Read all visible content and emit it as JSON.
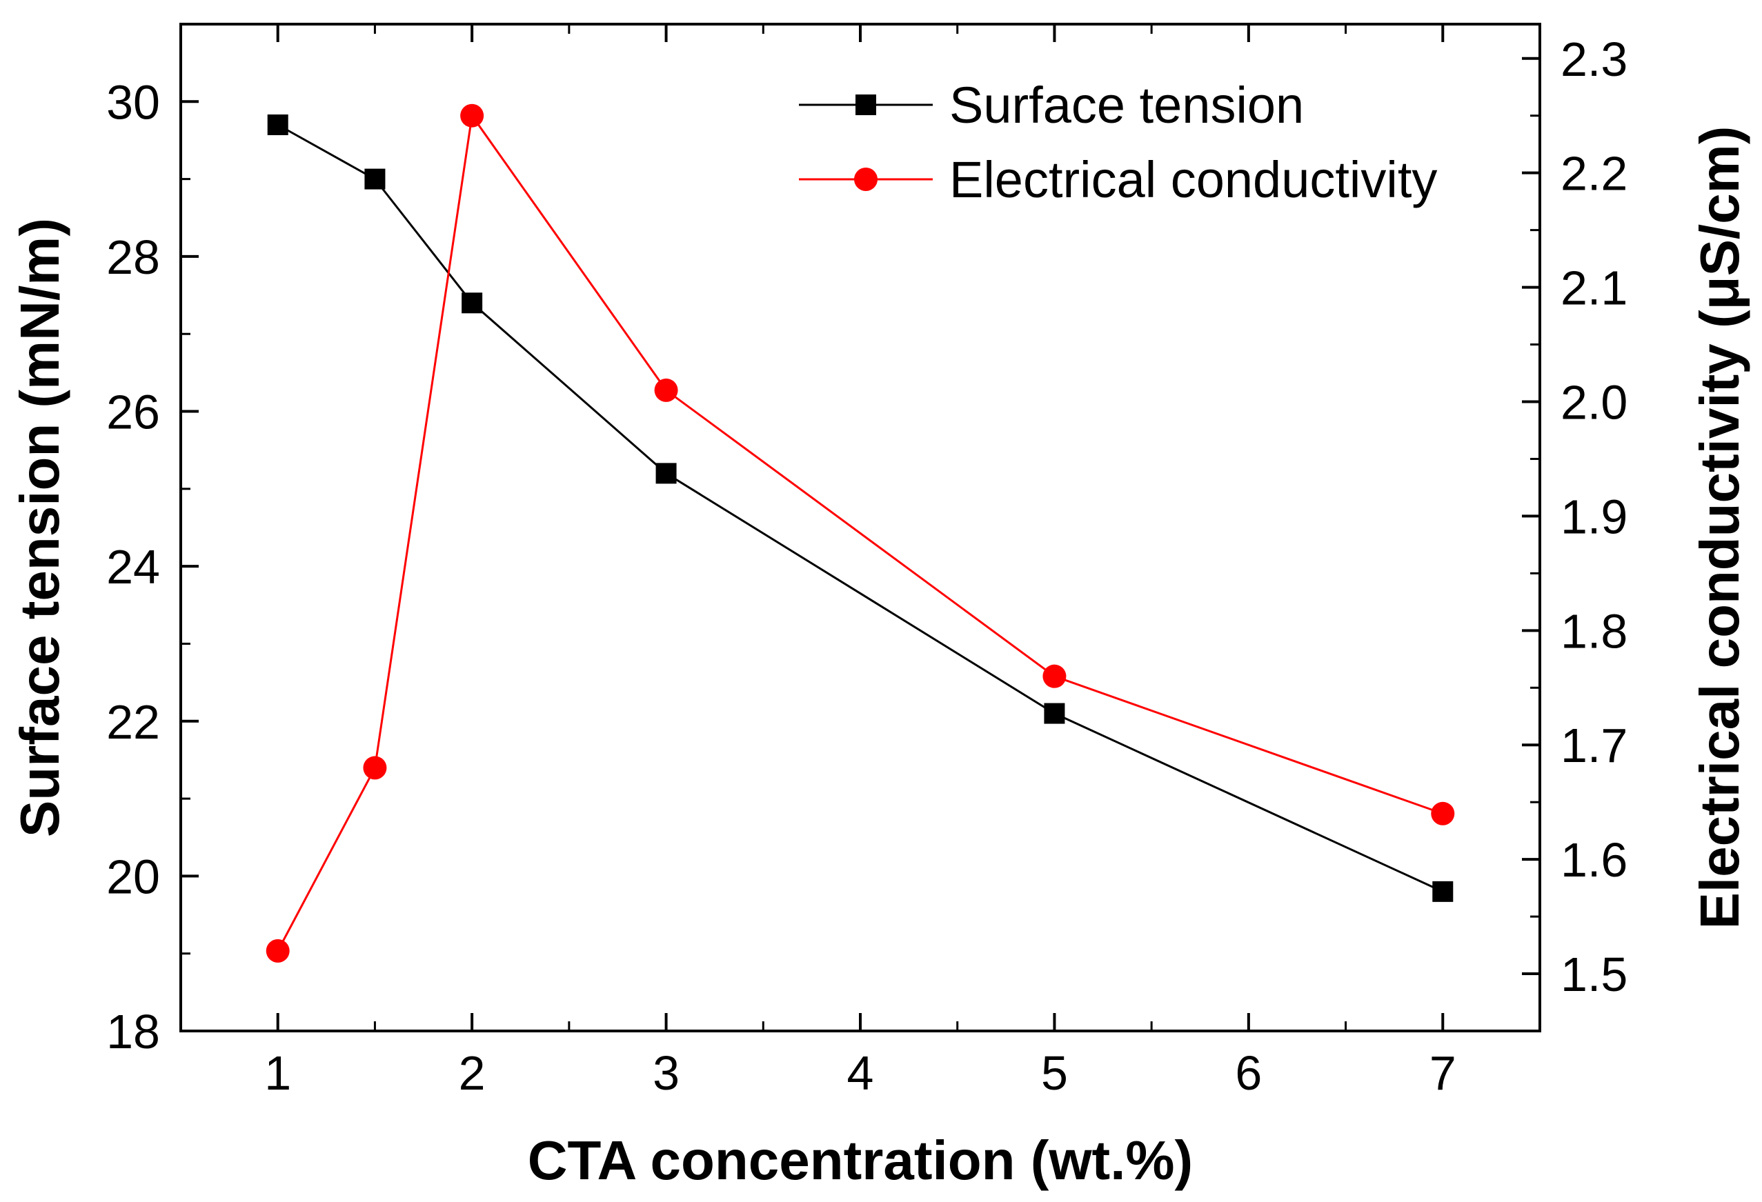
{
  "chart_data": {
    "type": "line",
    "xlabel": "CTA concentration (wt.%)",
    "ylabel_left": "Surface tension (mN/m)",
    "ylabel_right": "Electrical conductivity (μS/cm)",
    "xlim": [
      0.5,
      7.5
    ],
    "ylim_left": [
      18,
      31
    ],
    "ylim_right": [
      1.45,
      2.33
    ],
    "x_ticks": [
      1,
      2,
      3,
      4,
      5,
      6,
      7
    ],
    "y_left_ticks": [
      18,
      20,
      22,
      24,
      26,
      28,
      30
    ],
    "y_right_ticks": [
      1.5,
      1.6,
      1.7,
      1.8,
      1.9,
      2.0,
      2.1,
      2.2,
      2.3
    ],
    "legend_position": "top-right",
    "series": [
      {
        "name": "Surface tension",
        "axis": "left",
        "marker": "square",
        "color": "#000000",
        "x": [
          1,
          1.5,
          2,
          3,
          5,
          7
        ],
        "values": [
          29.7,
          29.0,
          27.4,
          25.2,
          22.1,
          19.8
        ]
      },
      {
        "name": "Electrical conductivity",
        "axis": "right",
        "marker": "circle",
        "color": "#ff0000",
        "x": [
          1,
          1.5,
          2,
          3,
          5,
          7
        ],
        "values": [
          1.52,
          1.68,
          2.25,
          2.01,
          1.76,
          1.64
        ]
      }
    ]
  }
}
